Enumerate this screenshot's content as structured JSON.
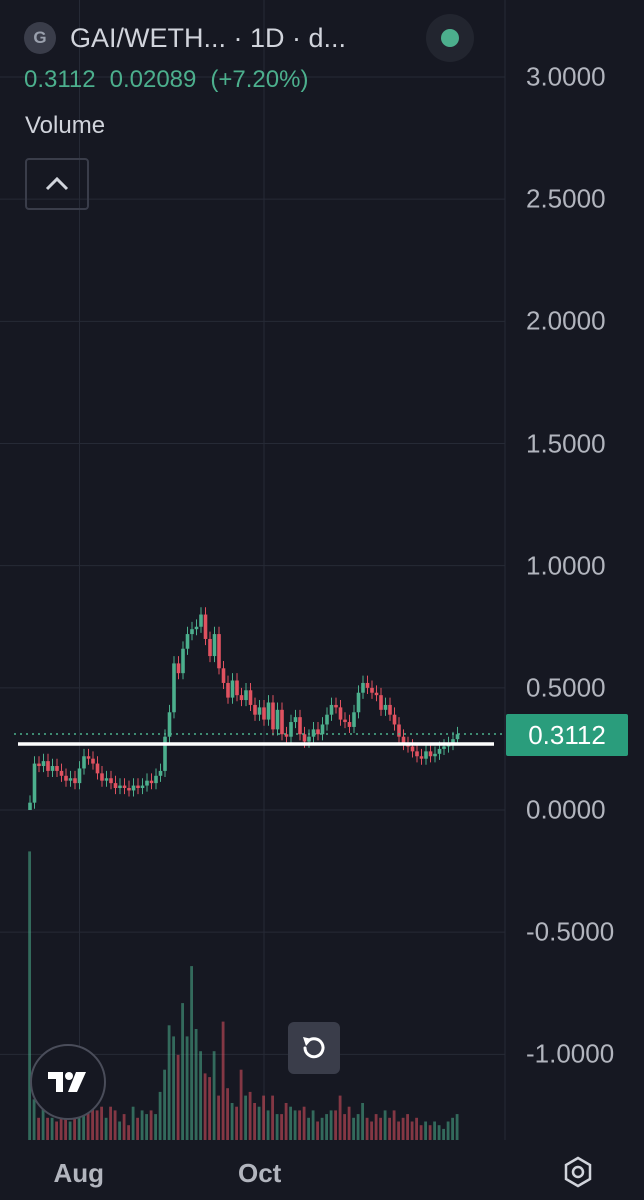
{
  "header": {
    "logo_letter": "G",
    "title": "GAI/WETH... · 1D · d..."
  },
  "ohlc": {
    "price": "0.3112",
    "change": "0.02089",
    "change_pct": "(+7.20%)"
  },
  "volume_pane": {
    "label": "Volume"
  },
  "price_tag": "0.3112",
  "colors": {
    "up": "#4caf8d",
    "down": "#e05260",
    "background": "#161822",
    "support_line": "#ffffff"
  },
  "icons": {
    "logo": "tradingview-logo-icon",
    "reset": "rotate-ccw-icon",
    "settings": "hexagon-gear-icon",
    "collapse": "chevron-up-icon",
    "status": "green-dot-icon"
  },
  "chart_data": {
    "type": "candlestick",
    "symbol": "GAI/WETH",
    "interval": "1D",
    "last_price": 0.3112,
    "y_ticks": [
      "3.0000",
      "2.5000",
      "2.0000",
      "1.5000",
      "1.0000",
      "0.5000",
      "0.0000",
      "-0.5000",
      "-1.0000"
    ],
    "ylim": [
      -1.3,
      3.15
    ],
    "x_ticks": [
      {
        "label": "Aug",
        "index": 11
      },
      {
        "label": "Oct",
        "index": 52
      }
    ],
    "support_level": 0.27,
    "close": [
      0.03,
      0.19,
      0.18,
      0.2,
      0.16,
      0.18,
      0.16,
      0.14,
      0.12,
      0.13,
      0.11,
      0.17,
      0.22,
      0.21,
      0.19,
      0.15,
      0.12,
      0.13,
      0.11,
      0.09,
      0.1,
      0.09,
      0.08,
      0.1,
      0.09,
      0.1,
      0.12,
      0.11,
      0.14,
      0.16,
      0.3,
      0.4,
      0.6,
      0.56,
      0.66,
      0.72,
      0.74,
      0.75,
      0.8,
      0.7,
      0.63,
      0.72,
      0.58,
      0.52,
      0.46,
      0.53,
      0.47,
      0.45,
      0.49,
      0.43,
      0.39,
      0.42,
      0.37,
      0.44,
      0.33,
      0.41,
      0.31,
      0.3,
      0.36,
      0.38,
      0.31,
      0.28,
      0.3,
      0.33,
      0.31,
      0.35,
      0.39,
      0.43,
      0.42,
      0.37,
      0.36,
      0.34,
      0.4,
      0.48,
      0.52,
      0.5,
      0.48,
      0.47,
      0.41,
      0.43,
      0.39,
      0.35,
      0.3,
      0.27,
      0.26,
      0.24,
      0.22,
      0.21,
      0.24,
      0.22,
      0.23,
      0.25,
      0.26,
      0.27,
      0.29,
      0.31
    ],
    "volume": [
      0.78,
      0.11,
      0.06,
      0.09,
      0.06,
      0.06,
      0.05,
      0.08,
      0.06,
      0.05,
      0.06,
      0.09,
      0.09,
      0.09,
      0.1,
      0.08,
      0.09,
      0.06,
      0.09,
      0.08,
      0.05,
      0.07,
      0.04,
      0.09,
      0.06,
      0.08,
      0.07,
      0.08,
      0.07,
      0.13,
      0.19,
      0.31,
      0.28,
      0.23,
      0.37,
      0.28,
      0.47,
      0.3,
      0.24,
      0.18,
      0.17,
      0.24,
      0.12,
      0.32,
      0.14,
      0.1,
      0.09,
      0.19,
      0.12,
      0.13,
      0.1,
      0.09,
      0.12,
      0.08,
      0.12,
      0.07,
      0.07,
      0.1,
      0.09,
      0.08,
      0.08,
      0.09,
      0.06,
      0.08,
      0.05,
      0.06,
      0.07,
      0.08,
      0.08,
      0.12,
      0.07,
      0.09,
      0.06,
      0.07,
      0.1,
      0.06,
      0.05,
      0.07,
      0.06,
      0.08,
      0.06,
      0.08,
      0.05,
      0.06,
      0.07,
      0.05,
      0.06,
      0.04,
      0.05,
      0.04,
      0.05,
      0.04,
      0.03,
      0.05,
      0.06,
      0.07
    ]
  }
}
